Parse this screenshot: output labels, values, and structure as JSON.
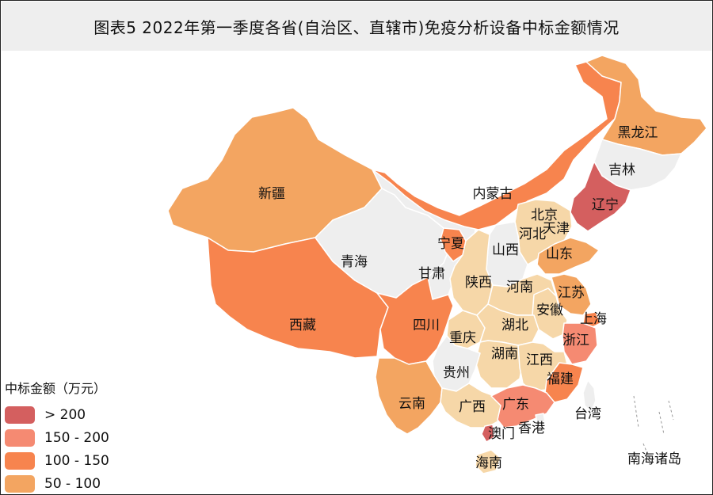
{
  "title": "图表5  2022年第一季度各省(自治区、直辖市)免疫分析设备中标金额情况",
  "legend": {
    "title": "中标金额（万元）",
    "bins": [
      {
        "label": "> 200",
        "color": "#d45f5f"
      },
      {
        "label": "150 - 200",
        "color": "#f58a72"
      },
      {
        "label": "100 - 150",
        "color": "#f7844e"
      },
      {
        "label": "50 - 100",
        "color": "#f3a561"
      }
    ]
  },
  "colors": {
    "no_data": "#eeeeee",
    "under_50": "#f6d7a8",
    "50_100": "#f3a561",
    "100_150": "#f7844e",
    "150_200": "#f58a72",
    "over_200": "#d45f5f"
  },
  "regions": [
    {
      "id": "xinjiang",
      "name": "新疆",
      "bin": "50_100"
    },
    {
      "id": "xizang",
      "name": "西藏",
      "bin": "100_150"
    },
    {
      "id": "qinghai",
      "name": "青海",
      "bin": "no_data"
    },
    {
      "id": "gansu",
      "name": "甘肃",
      "bin": "no_data"
    },
    {
      "id": "neimenggu",
      "name": "内蒙古",
      "bin": "100_150"
    },
    {
      "id": "heilongjiang",
      "name": "黑龙江",
      "bin": "50_100"
    },
    {
      "id": "jilin",
      "name": "吉林",
      "bin": "no_data"
    },
    {
      "id": "liaoning",
      "name": "辽宁",
      "bin": "over_200"
    },
    {
      "id": "beijing",
      "name": "北京",
      "bin": "over_200"
    },
    {
      "id": "tianjin",
      "name": "天津",
      "bin": "under_50"
    },
    {
      "id": "hebei",
      "name": "河北",
      "bin": "under_50"
    },
    {
      "id": "shanxi",
      "name": "山西",
      "bin": "no_data"
    },
    {
      "id": "shandong",
      "name": "山东",
      "bin": "50_100"
    },
    {
      "id": "ningxia",
      "name": "宁夏",
      "bin": "100_150"
    },
    {
      "id": "shaanxi",
      "name": "陕西",
      "bin": "under_50"
    },
    {
      "id": "henan",
      "name": "河南",
      "bin": "under_50"
    },
    {
      "id": "jiangsu",
      "name": "江苏",
      "bin": "50_100"
    },
    {
      "id": "shanghai",
      "name": "上海",
      "bin": "100_150"
    },
    {
      "id": "anhui",
      "name": "安徽",
      "bin": "under_50"
    },
    {
      "id": "sichuan",
      "name": "四川",
      "bin": "100_150"
    },
    {
      "id": "chongqing",
      "name": "重庆",
      "bin": "under_50"
    },
    {
      "id": "hubei",
      "name": "湖北",
      "bin": "under_50"
    },
    {
      "id": "zhejiang",
      "name": "浙江",
      "bin": "150_200"
    },
    {
      "id": "hunan",
      "name": "湖南",
      "bin": "under_50"
    },
    {
      "id": "jiangxi",
      "name": "江西",
      "bin": "under_50"
    },
    {
      "id": "guizhou",
      "name": "贵州",
      "bin": "no_data"
    },
    {
      "id": "fujian",
      "name": "福建",
      "bin": "100_150"
    },
    {
      "id": "yunnan",
      "name": "云南",
      "bin": "50_100"
    },
    {
      "id": "guangxi",
      "name": "广西",
      "bin": "under_50"
    },
    {
      "id": "guangdong",
      "name": "广东",
      "bin": "150_200"
    },
    {
      "id": "hainan",
      "name": "海南",
      "bin": "under_50"
    },
    {
      "id": "taiwan",
      "name": "台湾",
      "bin": "no_data"
    },
    {
      "id": "xianggang",
      "name": "香港",
      "bin": "no_data"
    },
    {
      "id": "aomen",
      "name": "澳门",
      "bin": "over_200"
    },
    {
      "id": "nanhai",
      "name": "南海诸岛",
      "bin": "no_data"
    }
  ]
}
